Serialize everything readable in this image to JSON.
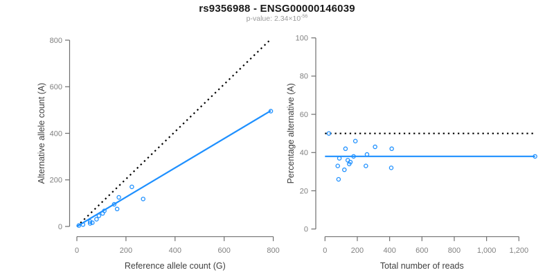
{
  "header": {
    "title": "rs9356988 - ENSG00000146039",
    "pvalue_prefix": "p-value: 2.34×10",
    "pvalue_exponent": "-56"
  },
  "colors": {
    "accent_blue": "#1E90FF",
    "identity_black": "#000000",
    "axis_line": "#6e6e6e",
    "tick_label": "#808080",
    "axis_title": "#404040",
    "subtitle_gray": "#999999"
  },
  "chart_data": [
    {
      "type": "scatter",
      "name": "allele-count-scatter",
      "xlabel": "Reference allele count (G)",
      "ylabel": "Alternative allele count (A)",
      "xlim": [
        0,
        800
      ],
      "ylim": [
        0,
        800
      ],
      "xticks": [
        0,
        200,
        400,
        600,
        800
      ],
      "xtick_labels": [
        "0",
        "200",
        "400",
        "600",
        "800"
      ],
      "yticks": [
        0,
        200,
        400,
        600,
        800
      ],
      "ytick_labels": [
        "0",
        "200",
        "400",
        "600",
        "800"
      ],
      "grid": false,
      "points": [
        [
          8,
          4
        ],
        [
          25,
          8
        ],
        [
          54,
          13
        ],
        [
          54,
          21
        ],
        [
          63,
          16
        ],
        [
          80,
          31
        ],
        [
          90,
          46
        ],
        [
          105,
          56
        ],
        [
          112,
          67
        ],
        [
          152,
          95
        ],
        [
          164,
          75
        ],
        [
          171,
          125
        ],
        [
          224,
          170
        ],
        [
          270,
          118
        ],
        [
          790,
          495
        ]
      ],
      "lines": [
        {
          "name": "identity-line",
          "style": "dotted",
          "color_key": "identity_black",
          "x1": 0,
          "y1": 0,
          "x2": 786,
          "y2": 800
        },
        {
          "name": "regression-line",
          "style": "solid",
          "color_key": "accent_blue",
          "x1": 0,
          "y1": 0,
          "x2": 790,
          "y2": 497
        }
      ]
    },
    {
      "type": "scatter",
      "name": "percentage-vs-reads-scatter",
      "xlabel": "Total number of reads",
      "ylabel": "Percentage alternative (A)",
      "xlim": [
        0,
        1200
      ],
      "ylim": [
        0,
        100
      ],
      "xticks": [
        0,
        200,
        400,
        600,
        800,
        1000,
        1200
      ],
      "xtick_labels": [
        "0",
        "200",
        "400",
        "600",
        "800",
        "1,000",
        "1,200"
      ],
      "yticks": [
        0,
        20,
        40,
        60,
        80,
        100
      ],
      "ytick_labels": [
        "0",
        "20",
        "40",
        "60",
        "80",
        "100"
      ],
      "grid": false,
      "points": [
        [
          24,
          50
        ],
        [
          79,
          33
        ],
        [
          84,
          26
        ],
        [
          89,
          37
        ],
        [
          120,
          31
        ],
        [
          127,
          42
        ],
        [
          141,
          36
        ],
        [
          150,
          34
        ],
        [
          157,
          35
        ],
        [
          177,
          38
        ],
        [
          188,
          46
        ],
        [
          253,
          33
        ],
        [
          260,
          39
        ],
        [
          310,
          43
        ],
        [
          410,
          32
        ],
        [
          413,
          42
        ],
        [
          1300,
          38
        ]
      ],
      "lines": [
        {
          "name": "expected-50pct-line",
          "style": "dotted",
          "color_key": "identity_black",
          "x1": 0,
          "y1": 50,
          "x2": 1290,
          "y2": 50
        },
        {
          "name": "mean-percentage-line",
          "style": "solid",
          "color_key": "accent_blue",
          "x1": 0,
          "y1": 38,
          "x2": 1300,
          "y2": 38
        }
      ]
    }
  ]
}
